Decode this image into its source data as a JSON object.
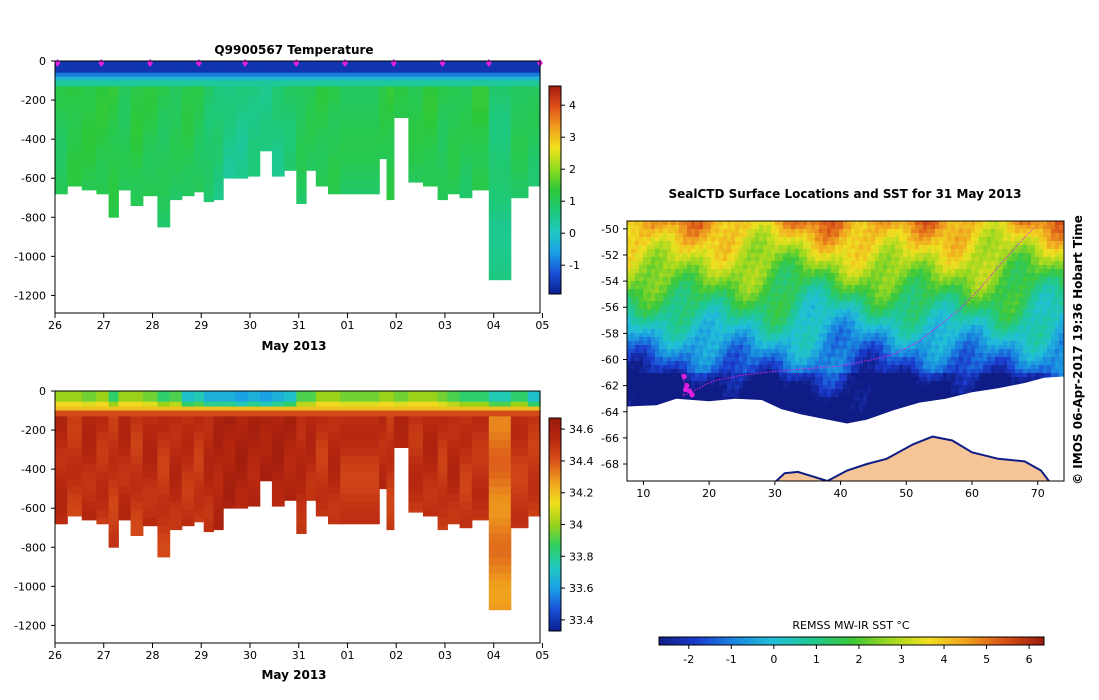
{
  "colors": {
    "temp_ramp": [
      "#0a1f8f",
      "#1a4fd6",
      "#1aa0e6",
      "#20c9c0",
      "#1ec878",
      "#2cc83a",
      "#8edc1e",
      "#f0e21e",
      "#f0a01e",
      "#e0501a",
      "#a51a10"
    ],
    "sal_ramp": [
      "#0a1f8f",
      "#1a4fd6",
      "#1aa0e6",
      "#20c9c0",
      "#30d060",
      "#9ad21a",
      "#f0e01e",
      "#f0a01e",
      "#d8501a",
      "#b82810",
      "#9a1a0c"
    ],
    "sst_ramp": [
      "#101c86",
      "#1a3ed0",
      "#1a8ae0",
      "#22c0d8",
      "#20c890",
      "#3cc83a",
      "#a0d820",
      "#f0e020",
      "#f0a020",
      "#d85018",
      "#9a1a0c"
    ],
    "land": "#f5c497",
    "track": "#e020e0"
  },
  "chart_data": [
    {
      "id": "temperature-section",
      "type": "heatmap",
      "title": "Q9900567  Temperature",
      "xlabel": "May 2013",
      "ylabel": "",
      "x_ticks": [
        "26",
        "27",
        "28",
        "29",
        "30",
        "31",
        "01",
        "02",
        "03",
        "04",
        "05"
      ],
      "y_ticks": [
        "0",
        "-200",
        "-400",
        "-600",
        "-800",
        "-1000",
        "-1200"
      ],
      "y_tick_values": [
        0,
        -200,
        -400,
        -600,
        -800,
        -1000,
        -1200
      ],
      "ylim": [
        -1290,
        0
      ],
      "x_range_days": [
        0,
        9.95
      ],
      "colorbar": {
        "ticks": [
          "-1",
          "0",
          "1",
          "2",
          "3",
          "4"
        ],
        "tick_values": [
          -1,
          0,
          1,
          2,
          3,
          4
        ],
        "range": [
          -1.9,
          4.6
        ]
      },
      "profile_markers_day": [
        0.05,
        0.95,
        1.95,
        2.95,
        3.9,
        4.95,
        5.95,
        6.95,
        7.95,
        8.9,
        9.95
      ],
      "data_gap_days": [
        6.05,
        6.65
      ],
      "profiles": {
        "start_day": [
          0,
          0.25,
          0.55,
          0.85,
          1.1,
          1.3,
          1.55,
          1.8,
          2.1,
          2.35,
          2.6,
          2.85,
          3.05,
          3.25,
          3.45,
          3.7,
          3.95,
          4.2,
          4.45,
          4.7,
          4.95,
          5.15,
          5.35,
          5.6,
          5.85,
          6.65,
          6.8,
          6.95,
          7.25,
          7.55,
          7.85,
          8.05,
          8.3,
          8.55,
          8.9,
          9.35,
          9.7
        ],
        "max_depth": [
          680,
          640,
          660,
          680,
          800,
          660,
          740,
          690,
          850,
          710,
          690,
          670,
          720,
          710,
          600,
          600,
          590,
          460,
          590,
          560,
          730,
          560,
          640,
          680,
          680,
          500,
          710,
          290,
          620,
          640,
          710,
          680,
          700,
          660,
          1120,
          700,
          640
        ],
        "deep_temp": [
          1.1,
          1.3,
          1.3,
          1.3,
          1.3,
          1.1,
          1.3,
          1.2,
          1.1,
          1.1,
          1.2,
          1.1,
          0.9,
          0.8,
          0.6,
          0.6,
          0.7,
          0.6,
          0.7,
          0.9,
          1.1,
          1.1,
          1.2,
          1.2,
          1.1,
          1.2,
          1.3,
          1.3,
          1.2,
          1.3,
          1.1,
          1.2,
          1.1,
          1.3,
          0.8,
          1.1,
          1.0
        ],
        "surface_temp": -1.6
      }
    },
    {
      "id": "salinity-section",
      "type": "heatmap",
      "title": "",
      "xlabel": "May 2013",
      "ylabel": "",
      "x_ticks": [
        "26",
        "27",
        "28",
        "29",
        "30",
        "31",
        "01",
        "02",
        "03",
        "04",
        "05"
      ],
      "y_ticks": [
        "0",
        "-200",
        "-400",
        "-600",
        "-800",
        "-1000",
        "-1200"
      ],
      "y_tick_values": [
        0,
        -200,
        -400,
        -600,
        -800,
        -1000,
        -1200
      ],
      "ylim": [
        -1290,
        0
      ],
      "x_range_days": [
        0,
        9.95
      ],
      "colorbar": {
        "ticks": [
          "33.4",
          "33.6",
          "33.8",
          "34",
          "34.2",
          "34.4",
          "34.6"
        ],
        "tick_values": [
          33.4,
          33.6,
          33.8,
          34.0,
          34.2,
          34.4,
          34.6
        ],
        "range": [
          33.33,
          34.67
        ]
      },
      "profiles": {
        "surface_sal": [
          34.0,
          34.0,
          33.95,
          34.0,
          33.85,
          34.0,
          34.0,
          33.95,
          33.85,
          33.9,
          33.7,
          33.75,
          33.65,
          33.65,
          33.65,
          33.6,
          33.65,
          33.6,
          33.65,
          33.7,
          33.9,
          33.9,
          34.0,
          34.0,
          33.95,
          34.0,
          34.0,
          33.95,
          34.0,
          34.0,
          33.95,
          33.9,
          33.85,
          33.85,
          33.75,
          33.85,
          33.7
        ],
        "deep_sal": [
          34.55,
          34.5,
          34.55,
          34.52,
          34.5,
          34.55,
          34.5,
          34.55,
          34.5,
          34.55,
          34.52,
          34.5,
          34.55,
          34.58,
          34.6,
          34.6,
          34.58,
          34.6,
          34.6,
          34.58,
          34.55,
          34.55,
          34.5,
          34.55,
          34.5,
          34.55,
          34.5,
          34.55,
          34.52,
          34.55,
          34.5,
          34.55,
          34.5,
          34.52,
          34.35,
          34.5,
          34.5
        ]
      }
    },
    {
      "id": "sst-map",
      "type": "heatmap",
      "title": "SealCTD Surface Locations and SST for 31 May 2013",
      "xlabel": "",
      "ylabel": "",
      "x_ticks": [
        "10",
        "20",
        "30",
        "40",
        "50",
        "60",
        "70"
      ],
      "x_tick_values": [
        10,
        20,
        30,
        40,
        50,
        60,
        70
      ],
      "y_ticks": [
        "-50",
        "-52",
        "-54",
        "-56",
        "-58",
        "-60",
        "-62",
        "-64",
        "-66",
        "-68"
      ],
      "y_tick_values": [
        -50,
        -52,
        -54,
        -56,
        -58,
        -60,
        -62,
        -64,
        -66,
        -68
      ],
      "xlim": [
        7.5,
        74
      ],
      "ylim": [
        -69.3,
        -49.4
      ],
      "colorbar": {
        "label": "REMSS MW-IR SST °C",
        "ticks": [
          "-2",
          "-1",
          "0",
          "1",
          "2",
          "3",
          "4",
          "5",
          "6"
        ],
        "tick_values": [
          -2,
          -1,
          0,
          1,
          2,
          3,
          4,
          5,
          6
        ],
        "range": [
          -2.7,
          6.35
        ]
      },
      "side_label": "©  IMOS 06-Apr-2017 19:36 Hobart Time",
      "track_points": [
        [
          15.8,
          -61.1
        ],
        [
          16.5,
          -62.1
        ],
        [
          16.0,
          -62.8
        ],
        [
          17.2,
          -62.5
        ],
        [
          18.5,
          -62.2
        ],
        [
          19.5,
          -61.9
        ],
        [
          21,
          -61.6
        ],
        [
          25,
          -61.2
        ],
        [
          30,
          -60.9
        ],
        [
          35,
          -60.7
        ],
        [
          40,
          -60.5
        ],
        [
          45,
          -60.0
        ],
        [
          48,
          -59.6
        ],
        [
          52,
          -58.6
        ],
        [
          55,
          -57.4
        ],
        [
          58,
          -56.2
        ],
        [
          61,
          -54.7
        ],
        [
          64,
          -52.9
        ],
        [
          67,
          -51.2
        ],
        [
          69.5,
          -49.9
        ]
      ],
      "recent_positions": [
        [
          16.2,
          -61.3
        ],
        [
          16.6,
          -62.0
        ],
        [
          17.0,
          -62.4
        ],
        [
          17.4,
          -62.7
        ],
        [
          16.4,
          -62.3
        ]
      ]
    }
  ]
}
